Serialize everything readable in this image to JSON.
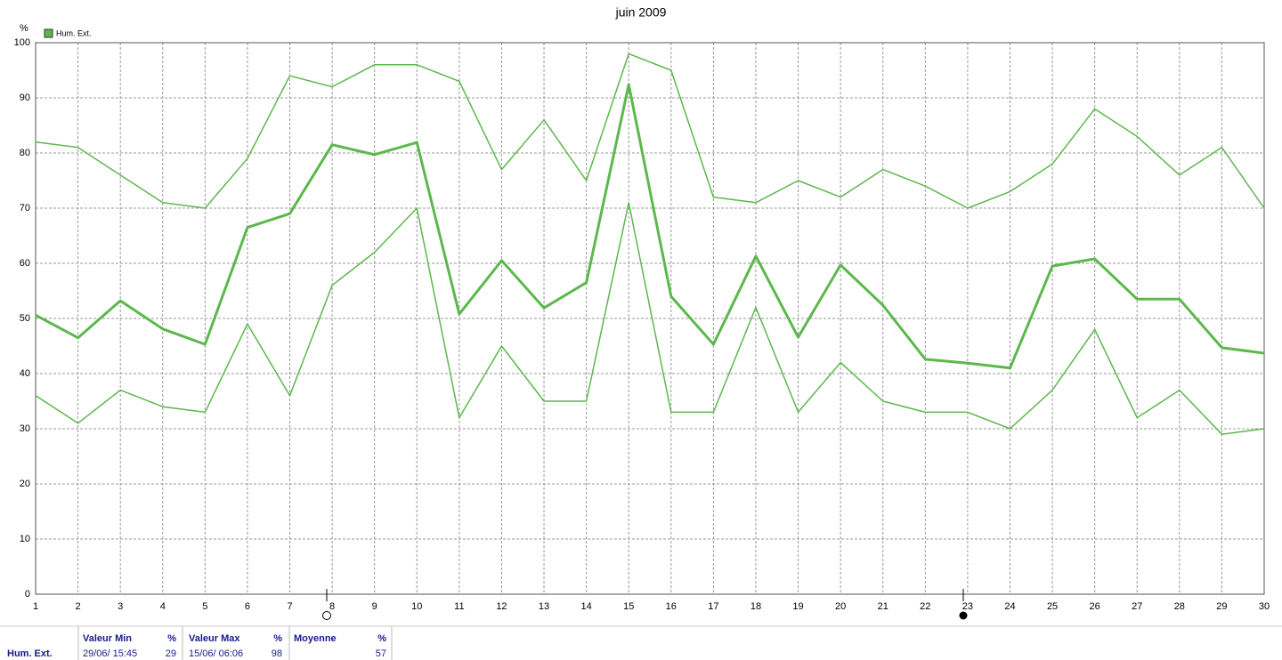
{
  "chart_data": {
    "type": "line",
    "title": "juin 2009",
    "y_unit": "%",
    "legend_label": "Hum. Ext.",
    "x": [
      1,
      2,
      3,
      4,
      5,
      6,
      7,
      8,
      9,
      10,
      11,
      12,
      13,
      14,
      15,
      16,
      17,
      18,
      19,
      20,
      21,
      22,
      23,
      24,
      25,
      26,
      27,
      28,
      29,
      30
    ],
    "xlim": [
      1,
      30
    ],
    "xticks": [
      1,
      2,
      3,
      4,
      5,
      6,
      7,
      8,
      9,
      10,
      11,
      12,
      13,
      14,
      15,
      16,
      17,
      18,
      19,
      20,
      21,
      22,
      23,
      24,
      25,
      26,
      27,
      28,
      29,
      30
    ],
    "ylim": [
      0,
      100
    ],
    "yticks": [
      0,
      10,
      20,
      30,
      40,
      50,
      60,
      70,
      80,
      90,
      100
    ],
    "grid": true,
    "series": [
      {
        "color": "#5cb84c",
        "width": 1.5,
        "values": [
          82,
          81,
          76,
          71,
          70,
          79,
          94,
          92,
          96,
          96,
          93,
          77,
          86,
          75,
          98,
          95,
          72,
          71,
          75,
          72,
          77,
          74,
          70,
          73,
          78,
          88,
          83,
          76,
          81,
          70
        ]
      },
      {
        "color": "#5cb84c",
        "width": 3,
        "values": [
          50.6,
          46.5,
          53.2,
          48.1,
          45.3,
          66.5,
          69,
          81.5,
          79.7,
          81.9,
          50.8,
          60.5,
          51.9,
          56.5,
          92.4,
          54,
          45.3,
          61.3,
          46.6,
          59.7,
          52.4,
          42.6,
          41.9,
          41,
          59.5,
          60.8,
          53.5,
          53.5,
          44.7,
          43.7
        ]
      },
      {
        "color": "#5cb84c",
        "width": 1.5,
        "values": [
          36,
          31,
          37,
          34,
          33,
          49,
          36,
          56,
          62,
          70,
          32,
          45,
          35,
          35,
          71,
          33,
          33,
          52,
          33,
          42,
          35,
          33,
          33,
          30,
          37,
          48,
          32,
          37,
          29,
          30
        ]
      }
    ]
  },
  "table": {
    "row_label": "Hum. Ext.",
    "min_header": "Valeur Min",
    "min_unit": "%",
    "min_date": "29/06/ 15:45",
    "min_value": 29,
    "max_header": "Valeur Max",
    "max_unit": "%",
    "max_date": "15/06/ 06:06",
    "max_value": 98,
    "mean_header": "Moyenne",
    "mean_unit": "%",
    "mean_value": 57
  }
}
